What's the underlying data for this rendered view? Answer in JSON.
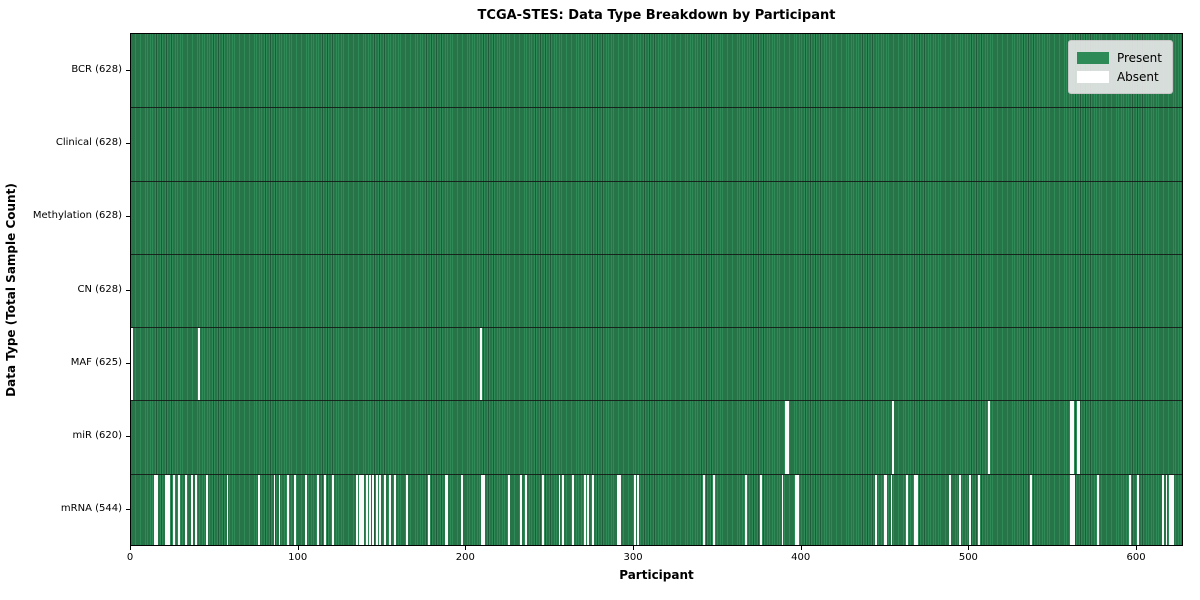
{
  "chart_data": {
    "type": "heatmap",
    "title": "TCGA-STES: Data Type Breakdown by Participant",
    "xlabel": "Participant",
    "ylabel": "Data Type (Total Sample Count)",
    "n_participants": 628,
    "x_ticks": [
      0,
      100,
      200,
      300,
      400,
      500,
      600
    ],
    "grid": false,
    "legend_position": "upper right",
    "colors": {
      "present": "#2e8b57",
      "present_edge": "#1e5c3a",
      "absent": "#fbfbfb",
      "legend_bg": "#e6e6e6"
    },
    "legend": [
      {
        "label": "Present",
        "color": "#2e8b57"
      },
      {
        "label": "Absent",
        "color": "#ffffff"
      }
    ],
    "rows": [
      {
        "label": "BCR (628)",
        "data_type": "BCR",
        "present_count": 628,
        "absent_participants": []
      },
      {
        "label": "Clinical (628)",
        "data_type": "Clinical",
        "present_count": 628,
        "absent_participants": []
      },
      {
        "label": "Methylation (628)",
        "data_type": "Methylation",
        "present_count": 628,
        "absent_participants": []
      },
      {
        "label": "CN (628)",
        "data_type": "CN",
        "present_count": 628,
        "absent_participants": []
      },
      {
        "label": "MAF (625)",
        "data_type": "MAF",
        "present_count": 625,
        "absent_participants": [
          0,
          40,
          208
        ]
      },
      {
        "label": "miR (620)",
        "data_type": "miR",
        "present_count": 620,
        "absent_participants": [
          390,
          391,
          454,
          511,
          560,
          561,
          564,
          565
        ]
      },
      {
        "label": "mRNA (544)",
        "data_type": "mRNA",
        "present_count": 544,
        "absent_participants": [
          14,
          15,
          20,
          21,
          22,
          25,
          28,
          32,
          36,
          38,
          45,
          57,
          76,
          85,
          88,
          93,
          97,
          104,
          111,
          115,
          120,
          134,
          136,
          137,
          138,
          140,
          142,
          144,
          146,
          148,
          151,
          154,
          157,
          164,
          177,
          187,
          188,
          197,
          209,
          210,
          225,
          232,
          235,
          245,
          255,
          257,
          263,
          270,
          272,
          275,
          290,
          291,
          300,
          302,
          341,
          347,
          366,
          375,
          388,
          396,
          397,
          444,
          449,
          450,
          453,
          462,
          467,
          468,
          488,
          494,
          500,
          505,
          536,
          560,
          561,
          562,
          576,
          595,
          600,
          615,
          617,
          619,
          620,
          621
        ]
      }
    ]
  }
}
